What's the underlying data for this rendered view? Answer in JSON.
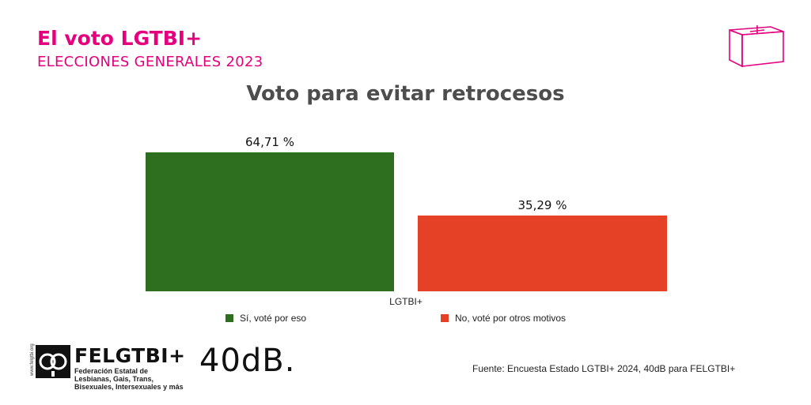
{
  "header": {
    "title": "El voto LGTBI+",
    "subtitle": "ELECCIONES GENERALES 2023"
  },
  "colors": {
    "accent": "#e5007e",
    "si": "#2e6e1f",
    "no": "#e54126"
  },
  "icons": {
    "ballot": "ballot-box-icon",
    "org": "felgtbi-logo-icon"
  },
  "chart_data": {
    "type": "bar",
    "title": "Voto para evitar retrocesos",
    "categories": [
      "LGTBI+"
    ],
    "xlabel": "",
    "ylabel": "",
    "ylim": [
      0,
      100
    ],
    "series": [
      {
        "name": "Sí, voté por eso",
        "values": [
          64.71
        ],
        "label": "64,71 %",
        "color": "#2e6e1f"
      },
      {
        "name": "No, voté por otros motivos",
        "values": [
          35.29
        ],
        "label": "35,29 %",
        "color": "#e54126"
      }
    ],
    "legend_position": "bottom"
  },
  "footer": {
    "org_name": "FELGTBI+",
    "org_description": "Federación Estatal de Lesbianas, Gais, Trans, Bisexuales, Intersexuales y más",
    "org_web": "www.felgtbi.org",
    "brand": "40dB.",
    "source": "Fuente: Encuesta Estado LGTBI+ 2024, 40dB para FELGTBI+"
  }
}
